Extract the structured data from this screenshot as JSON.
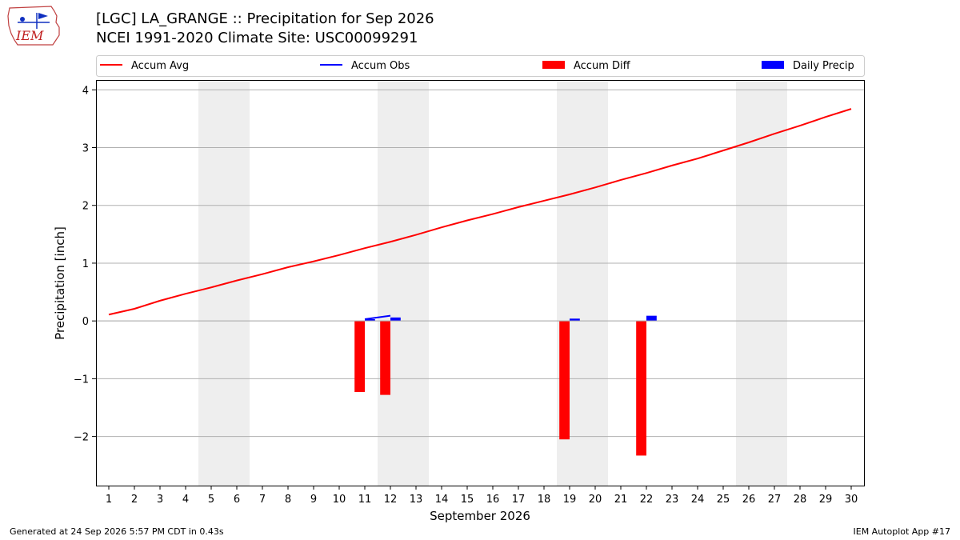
{
  "header": {
    "logo_text": "IEM",
    "title": "[LGC] LA_GRANGE :: Precipitation for Sep 2026",
    "subtitle": "NCEI 1991-2020 Climate Site: USC00099291"
  },
  "footer": {
    "generated": "Generated at 24 Sep 2026 5:57 PM CDT in 0.43s",
    "app": "IEM Autoplot App #17"
  },
  "chart_data": {
    "type": "bar",
    "title": "[LGC] LA_GRANGE :: Precipitation for Sep 2026",
    "xlabel": "September 2026",
    "ylabel": "Precipitation [inch]",
    "xlim": [
      0.5,
      30.5
    ],
    "ylim": [
      -2.85,
      4.17
    ],
    "x": [
      1,
      2,
      3,
      4,
      5,
      6,
      7,
      8,
      9,
      10,
      11,
      12,
      13,
      14,
      15,
      16,
      17,
      18,
      19,
      20,
      21,
      22,
      23,
      24,
      25,
      26,
      27,
      28,
      29,
      30
    ],
    "yticks": [
      -2,
      -1,
      0,
      1,
      2,
      3,
      4
    ],
    "ytick_labels": [
      "−2",
      "−1",
      "0",
      "1",
      "2",
      "3",
      "4"
    ],
    "grid": "horizontal",
    "legend_position": "top",
    "weekend_shading": [
      [
        4.5,
        6.5
      ],
      [
        11.5,
        13.5
      ],
      [
        18.5,
        20.5
      ],
      [
        25.5,
        27.5
      ]
    ],
    "series": [
      {
        "name": "Accum Avg",
        "kind": "line",
        "color": "#ff0000",
        "x": [
          1,
          2,
          3,
          4,
          5,
          6,
          7,
          8,
          9,
          10,
          11,
          12,
          13,
          14,
          15,
          16,
          17,
          18,
          19,
          20,
          21,
          22,
          23,
          24,
          25,
          26,
          27,
          28,
          29,
          30
        ],
        "values": [
          0.11,
          0.21,
          0.35,
          0.47,
          0.58,
          0.7,
          0.81,
          0.93,
          1.03,
          1.14,
          1.26,
          1.37,
          1.49,
          1.62,
          1.74,
          1.85,
          1.97,
          2.08,
          2.19,
          2.31,
          2.44,
          2.56,
          2.69,
          2.81,
          2.95,
          3.09,
          3.24,
          3.38,
          3.53,
          3.67
        ]
      },
      {
        "name": "Accum Obs",
        "kind": "line",
        "color": "#0000ff",
        "x": [
          11,
          12
        ],
        "values": [
          0.03,
          0.09
        ]
      },
      {
        "name": "Accum Diff",
        "kind": "bar",
        "color": "#ff0000",
        "x": [
          11,
          12,
          19,
          22
        ],
        "values": [
          -1.23,
          -1.28,
          -2.05,
          -2.33
        ]
      },
      {
        "name": "Daily Precip",
        "kind": "bar",
        "color": "#0000ff",
        "x": [
          11,
          12,
          19,
          22
        ],
        "values": [
          0.03,
          0.06,
          0.04,
          0.09
        ]
      }
    ]
  }
}
